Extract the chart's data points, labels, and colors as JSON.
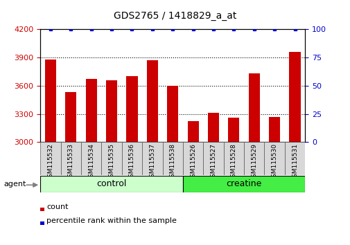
{
  "title": "GDS2765 / 1418829_a_at",
  "categories": [
    "GSM115532",
    "GSM115533",
    "GSM115534",
    "GSM115535",
    "GSM115536",
    "GSM115537",
    "GSM115538",
    "GSM115526",
    "GSM115527",
    "GSM115528",
    "GSM115529",
    "GSM115530",
    "GSM115531"
  ],
  "bar_values": [
    3880,
    3530,
    3670,
    3660,
    3700,
    3870,
    3600,
    3220,
    3310,
    3260,
    3730,
    3270,
    3960
  ],
  "percentile_values": [
    100,
    100,
    100,
    100,
    100,
    100,
    100,
    100,
    100,
    100,
    100,
    100,
    100
  ],
  "bar_color": "#cc0000",
  "percentile_color": "#0000cc",
  "ylim_left": [
    3000,
    4200
  ],
  "ylim_right": [
    0,
    100
  ],
  "yticks_left": [
    3000,
    3300,
    3600,
    3900,
    4200
  ],
  "yticks_right": [
    0,
    25,
    50,
    75,
    100
  ],
  "groups": [
    {
      "label": "control",
      "start": 0,
      "end": 7,
      "color": "#ccffcc"
    },
    {
      "label": "creatine",
      "start": 7,
      "end": 13,
      "color": "#44ee44"
    }
  ],
  "agent_label": "agent",
  "legend_count_label": "count",
  "legend_percentile_label": "percentile rank within the sample",
  "background_color": "#ffffff",
  "tick_label_color_left": "#cc0000",
  "tick_label_color_right": "#0000cc",
  "xtick_box_color": "#d8d8d8",
  "title_fontsize": 10,
  "bar_width": 0.55
}
